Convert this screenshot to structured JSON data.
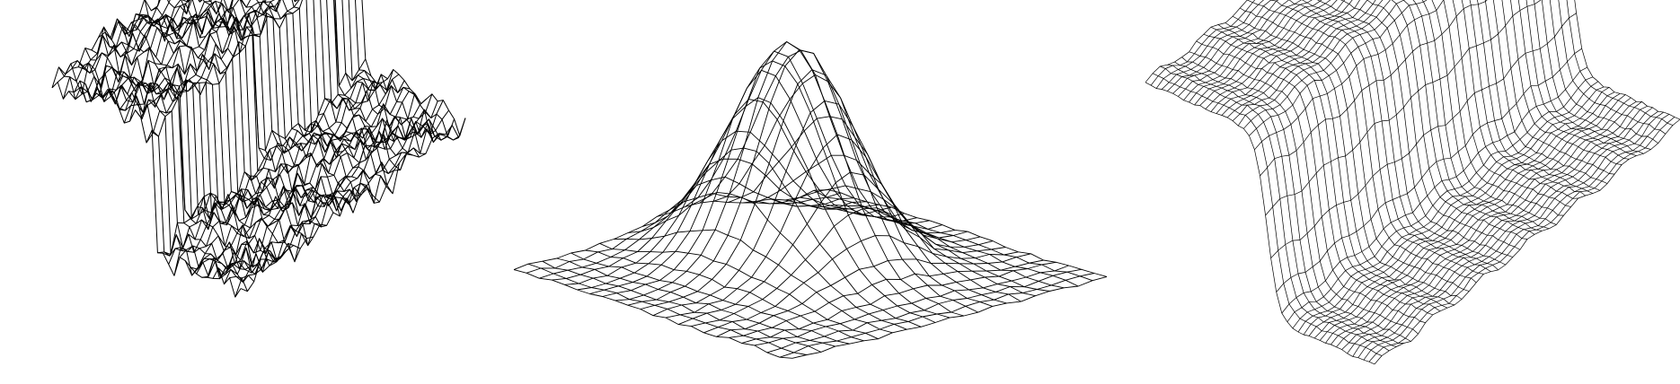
{
  "figure": {
    "style": {
      "background": "#ffffff",
      "stroke": "#000000"
    },
    "panels": [
      {
        "surface": "noisy-step",
        "description_shape": "step",
        "noise": 0.9,
        "grid": 34
      },
      {
        "surface": "gaussian-peak",
        "description_shape": "peak",
        "noise": 0.25,
        "grid": 22
      },
      {
        "surface": "smooth-step",
        "description_shape": "step",
        "noise": 0.12,
        "grid": 42
      }
    ]
  }
}
